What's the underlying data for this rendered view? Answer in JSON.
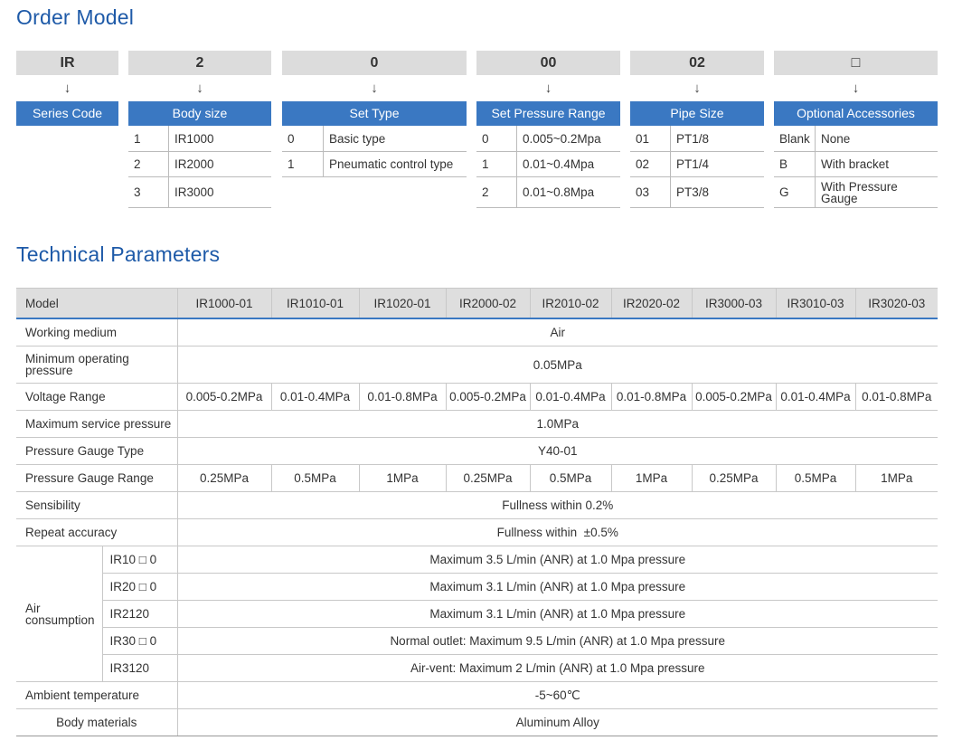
{
  "order_model": {
    "title": "Order Model",
    "arrow": "↓",
    "columns": [
      {
        "code": "IR",
        "category": "Series Code",
        "options": []
      },
      {
        "code": "2",
        "category": "Body size",
        "options": [
          {
            "key": "1",
            "value": "IR1000"
          },
          {
            "key": "2",
            "value": "IR2000"
          },
          {
            "key": "3",
            "value": "IR3000"
          }
        ]
      },
      {
        "code": "0",
        "category": "Set Type",
        "options": [
          {
            "key": "0",
            "value": "Basic type"
          },
          {
            "key": "1",
            "value": "Pneumatic control type"
          }
        ]
      },
      {
        "code": "00",
        "category": "Set Pressure Range",
        "options": [
          {
            "key": "0",
            "value": "0.005~0.2Mpa"
          },
          {
            "key": "1",
            "value": "0.01~0.4Mpa"
          },
          {
            "key": "2",
            "value": "0.01~0.8Mpa"
          }
        ]
      },
      {
        "code": "02",
        "category": "Pipe Size",
        "options": [
          {
            "key": "01",
            "value": "PT1/8"
          },
          {
            "key": "02",
            "value": "PT1/4"
          },
          {
            "key": "03",
            "value": "PT3/8"
          }
        ]
      },
      {
        "code": "□",
        "category": "Optional Accessories",
        "options": [
          {
            "key": "Blank",
            "value": "None"
          },
          {
            "key": "B",
            "value": "With bracket"
          },
          {
            "key": "G",
            "value": "With Pressure Gauge"
          }
        ]
      }
    ]
  },
  "technical": {
    "title": "Technical Parameters",
    "model_header": "Model",
    "models": [
      "IR1000-01",
      "IR1010-01",
      "IR1020-01",
      "IR2000-02",
      "IR2010-02",
      "IR2020-02",
      "IR3000-03",
      "IR3010-03",
      "IR3020-03"
    ],
    "working_medium": {
      "label": "Working medium",
      "value": "Air"
    },
    "min_pressure": {
      "label": "Minimum operating pressure",
      "value": "0.05MPa"
    },
    "voltage_range": {
      "label": "Voltage Range",
      "values": [
        "0.005-0.2MPa",
        "0.01-0.4MPa",
        "0.01-0.8MPa",
        "0.005-0.2MPa",
        "0.01-0.4MPa",
        "0.01-0.8MPa",
        "0.005-0.2MPa",
        "0.01-0.4MPa",
        "0.01-0.8MPa"
      ]
    },
    "max_service_pressure": {
      "label": "Maximum service pressure",
      "value": "1.0MPa"
    },
    "gauge_type": {
      "label": "Pressure Gauge Type",
      "value": "Y40-01"
    },
    "gauge_range": {
      "label": "Pressure Gauge Range",
      "values": [
        "0.25MPa",
        "0.5MPa",
        "1MPa",
        "0.25MPa",
        "0.5MPa",
        "1MPa",
        "0.25MPa",
        "0.5MPa",
        "1MPa"
      ]
    },
    "sensibility": {
      "label": "Sensibility",
      "value": "Fullness within 0.2%"
    },
    "repeat_accuracy": {
      "label": "Repeat accuracy",
      "value": "Fullness within  ±0.5%"
    },
    "air_consumption": {
      "label": "Air consumption",
      "rows": [
        {
          "sub": "IR10 □ 0",
          "value": "Maximum 3.5 L/min (ANR) at 1.0 Mpa pressure"
        },
        {
          "sub": "IR20 □ 0",
          "value": "Maximum 3.1 L/min (ANR) at 1.0 Mpa pressure"
        },
        {
          "sub": "IR2120",
          "value": "Maximum 3.1 L/min (ANR) at 1.0 Mpa pressure"
        },
        {
          "sub": "IR30 □ 0",
          "value": "Normal outlet: Maximum 9.5 L/min (ANR) at 1.0 Mpa pressure"
        },
        {
          "sub": "IR3120",
          "value": "Air-vent: Maximum 2 L/min (ANR) at 1.0 Mpa pressure"
        }
      ]
    },
    "ambient_temp": {
      "label": "Ambient temperature",
      "value": "-5~60℃"
    },
    "body_materials": {
      "label": "Body materials",
      "value": "Aluminum Alloy"
    }
  }
}
